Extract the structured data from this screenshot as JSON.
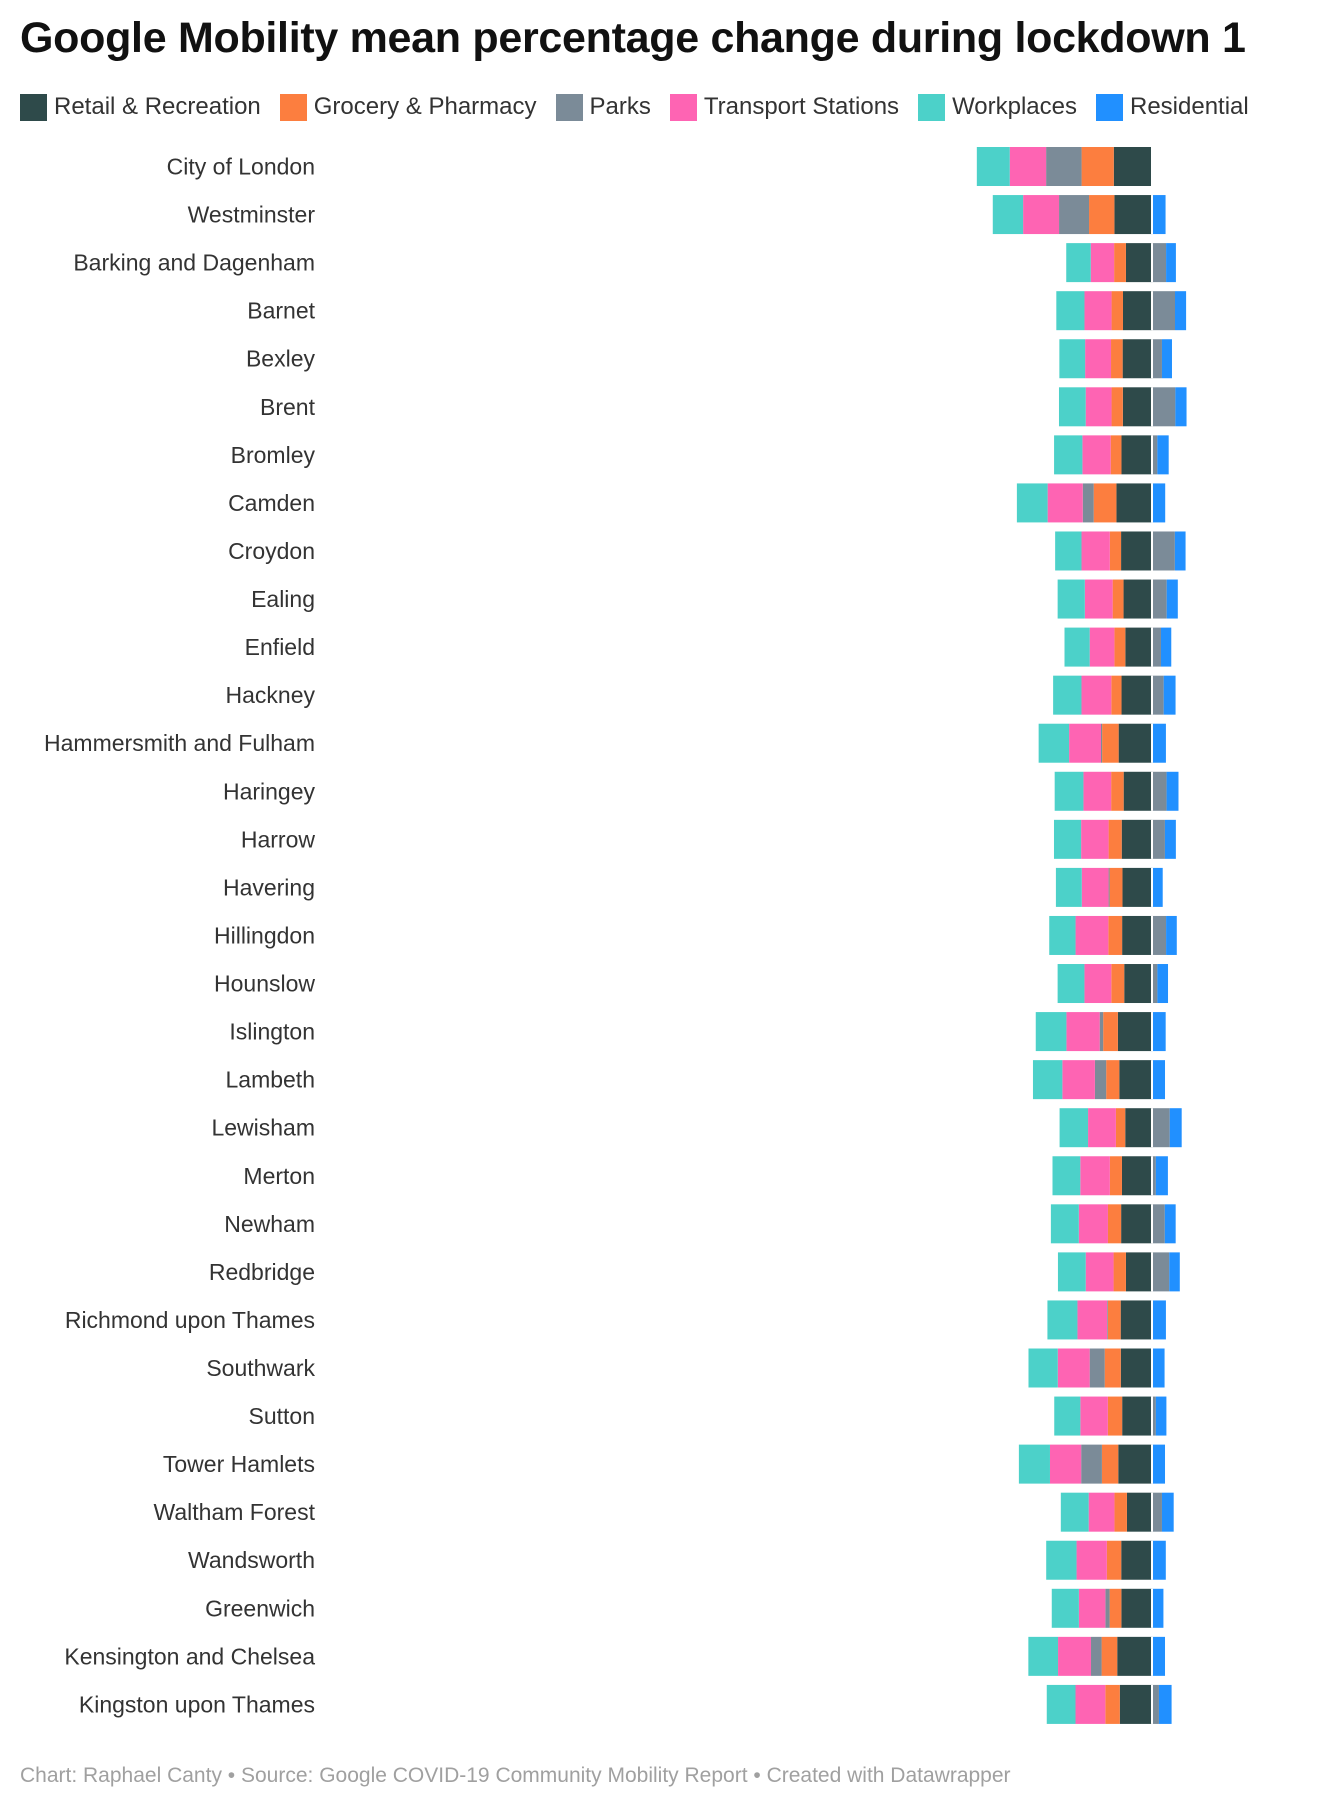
{
  "title": "Google Mobility mean percentage change during lockdown 1",
  "footer": {
    "byline": "Chart: Raphael Canty",
    "separator": "•",
    "source": "Source: Google COVID-19 Community Mobility Report",
    "credit": "Created with Datawrapper"
  },
  "colors": {
    "retail": "#2e4a4a",
    "grocery": "#fc7e3f",
    "parks": "#7b8b98",
    "transport": "#fe64b3",
    "workplaces": "#4cd1c9",
    "residential": "#2190ff"
  },
  "chart_data": {
    "type": "bar",
    "orientation": "horizontal",
    "stacked": true,
    "title": "Google Mobility mean percentage change during lockdown 1",
    "legend_position": "top-left",
    "grid": false,
    "categories": [
      "City of London",
      "Westminster",
      "Barking and Dagenham",
      "Barnet",
      "Bexley",
      "Brent",
      "Bromley",
      "Camden",
      "Croydon",
      "Ealing",
      "Enfield",
      "Hackney",
      "Hammersmith and Fulham",
      "Haringey",
      "Harrow",
      "Havering",
      "Hillingdon",
      "Hounslow",
      "Islington",
      "Lambeth",
      "Lewisham",
      "Merton",
      "Newham",
      "Redbridge",
      "Richmond upon Thames",
      "Southwark",
      "Sutton",
      "Tower Hamlets",
      "Waltham Forest",
      "Wandsworth",
      "Greenwich",
      "Kensington and Chelsea",
      "Kingston upon Thames"
    ],
    "series": [
      {
        "name": "Retail & Recreation",
        "key": "retail",
        "direction": "negative",
        "labeled": true,
        "values": [
          -96.37,
          -94.86,
          -65.76,
          -73.2,
          -74.04,
          -73.51,
          -76.98,
          -89.78,
          -78.02,
          -71.76,
          -67.25,
          -76.86,
          -84.12,
          -71.45,
          -76.37,
          -74.53,
          -75.37,
          -70.06,
          -86.08,
          -82.49,
          -67.51,
          -75.76,
          -77.88,
          -65.76,
          -79,
          -78.71,
          -75.25,
          -85.12,
          -63.24,
          -77.63,
          -77.31,
          -87.73,
          -81.2
        ]
      },
      {
        "name": "Grocery & Pharmacy",
        "key": "grocery",
        "direction": "negative",
        "labeled": false,
        "values": [
          -81.22,
          -63.94,
          -29.8,
          -28.8,
          -29.3,
          -28.5,
          -27.2,
          -57.33,
          -28.3,
          -27.5,
          -27.6,
          -25.8,
          -41.7,
          -31.6,
          -33.1,
          -32.4,
          -34.7,
          -32.6,
          -37.1,
          -33.1,
          -23.5,
          -30.5,
          -33.2,
          -31.2,
          -32.4,
          -40.6,
          -36.0,
          -41.2,
          -31.5,
          -36.2,
          -29.6,
          -39.4,
          -36.5
        ]
      },
      {
        "name": "Parks",
        "key": "parks",
        "direction": "negative",
        "labeled": false,
        "values": [
          -89.47,
          -75.63,
          0,
          0,
          0,
          0,
          0,
          -27.5,
          0,
          0,
          0,
          0,
          -2.8,
          0,
          0,
          -2.6,
          0,
          0,
          -8.8,
          -28.4,
          0,
          0,
          0,
          0,
          -1.9,
          -37.9,
          0,
          -52.35,
          0,
          0,
          -10.7,
          -26.7,
          0
        ]
      },
      {
        "name": "Transport Stations",
        "key": "transport",
        "direction": "negative",
        "labeled": true,
        "values": [
          -91.71,
          -90.65,
          -58.92,
          -68.29,
          -65.33,
          -65.22,
          -71.37,
          -88.61,
          -71.45,
          -70.18,
          -62.29,
          -75.18,
          -80.49,
          -69.88,
          -69.33,
          -67.59,
          -82.75,
          -67.75,
          -83.86,
          -82.12,
          -70.27,
          -74.61,
          -73.47,
          -70.24,
          -74.73,
          -80.43,
          -69.47,
          -78.69,
          -64.98,
          -76.47,
          -66.78,
          -83.14,
          -75.22
        ]
      },
      {
        "name": "Workplaces",
        "key": "workplaces",
        "direction": "negative",
        "labeled": true,
        "values": [
          -83.03,
          -76.49,
          -61.82,
          -71.04,
          -64.98,
          -67.37,
          -71.43,
          -77.55,
          -66.53,
          -68.55,
          -63.53,
          -71.53,
          -76.78,
          -72.51,
          -68.41,
          -65.22,
          -66.33,
          -67.63,
          -77.35,
          -74.12,
          -71.82,
          -70.1,
          -70.49,
          -70,
          -75.73,
          -73.86,
          -65.82,
          -78.39,
          -70.25,
          -76.53,
          -68.43,
          -74.88,
          -72.51
        ]
      },
      {
        "name": "Parks",
        "key": "parks",
        "direction": "positive",
        "labeled": true,
        "values": [
          0,
          0,
          35.5,
          58.02,
          25.1,
          58.92,
          13.5,
          0,
          57.65,
          37.1,
          22.6,
          29.5,
          0,
          36.8,
          32.6,
          0,
          35.5,
          13.6,
          0,
          0,
          44.8,
          9.7,
          32.3,
          43.5,
          0,
          0,
          9.7,
          0,
          25.1,
          0,
          0,
          0,
          17.5
        ]
      },
      {
        "name": "Residential",
        "key": "residential",
        "direction": "positive",
        "labeled": true,
        "values": [
          0,
          34.2,
          24.8,
          28.0,
          25.3,
          28.2,
          28.6,
          33.3,
          27.0,
          28,
          26.0,
          29.9,
          35.1,
          30.0,
          27.6,
          27.0,
          27.0,
          26.8,
          34.5,
          32.8,
          30.1,
          30.4,
          27.4,
          26.6,
          35.1,
          31.7,
          26.6,
          32.8,
          29.6,
          34.8,
          28.8,
          32.8,
          31.9
        ]
      }
    ]
  }
}
